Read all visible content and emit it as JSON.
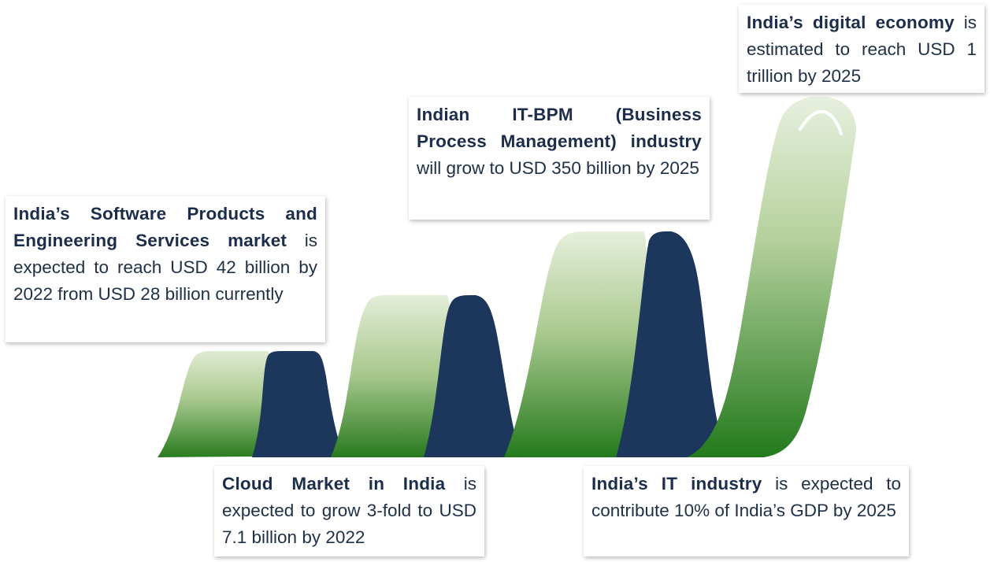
{
  "callouts": {
    "software": {
      "bold": "India’s Software Products and Engineering Services market",
      "text": " is expected to reach USD 42 billion by 2022 from USD 28 billion currently"
    },
    "itbpm": {
      "bold": "Indian IT-BPM (Business Process Management) industry",
      "text": " will grow to USD 350 billion by 2025"
    },
    "digital": {
      "bold": "India’s digital economy",
      "text": " is estimated to reach USD 1 trillion by 2025"
    },
    "cloud": {
      "bold": "Cloud Market in India",
      "text": " is expected to grow 3-fold to USD 7.1 billion by 2022"
    },
    "it_industry": {
      "bold": "India’s IT industry",
      "text": " is expected to contribute 10% of India’s GDP by 2025"
    }
  },
  "colors": {
    "green_light": "#dfead3",
    "green_dark": "#2b7d21",
    "navy": "#1c365c"
  }
}
